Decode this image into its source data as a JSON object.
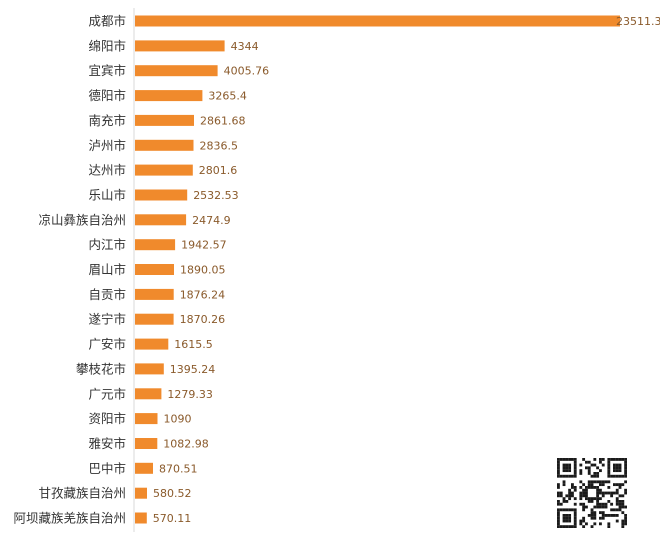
{
  "chart_data": {
    "type": "bar",
    "orientation": "horizontal",
    "categories": [
      "成都市",
      "绵阳市",
      "宜宾市",
      "德阳市",
      "南充市",
      "泸州市",
      "达州市",
      "乐山市",
      "凉山彝族自治州",
      "内江市",
      "眉山市",
      "自贡市",
      "遂宁市",
      "广安市",
      "攀枝花市",
      "广元市",
      "资阳市",
      "雅安市",
      "巴中市",
      "甘孜藏族自治州",
      "阿坝藏族羌族自治州"
    ],
    "values": [
      23511.3,
      4344,
      4005.76,
      3265.4,
      2861.68,
      2836.5,
      2801.6,
      2532.53,
      2474.9,
      1942.57,
      1890.05,
      1876.24,
      1870.26,
      1615.5,
      1395.24,
      1279.33,
      1090,
      1082.98,
      870.51,
      580.52,
      570.11
    ],
    "value_labels": [
      "23511.3",
      "4344",
      "4005.76",
      "3265.4",
      "2861.68",
      "2836.5",
      "2801.6",
      "2532.53",
      "2474.9",
      "1942.57",
      "1890.05",
      "1876.24",
      "1870.26",
      "1615.5",
      "1395.24",
      "1279.33",
      "1090",
      "1082.98",
      "870.51",
      "580.52",
      "570.11"
    ],
    "title": "",
    "xlabel": "",
    "ylabel": "",
    "xlim": [
      0,
      23511.3
    ],
    "grid": false,
    "legend": "none",
    "bar_color": "#f08a2c",
    "label_color": "#8a5a2b",
    "text_color": "#333333"
  },
  "qr_code": {
    "icon": "qr-code-icon"
  }
}
